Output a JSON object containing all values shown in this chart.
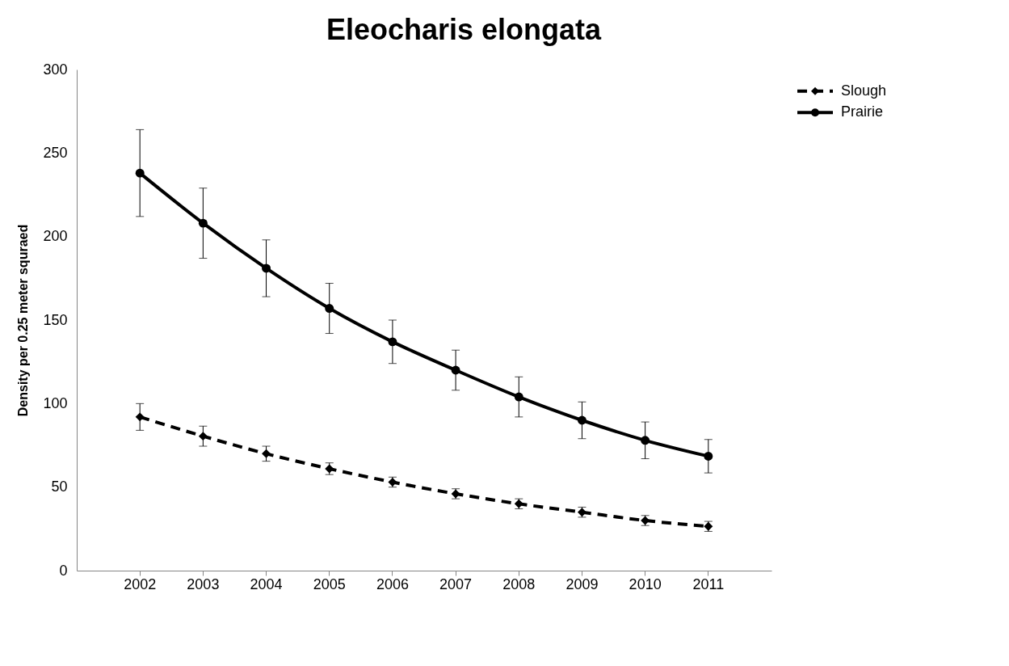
{
  "chart_data": {
    "type": "line",
    "title": "Eleocharis elongata",
    "ylabel": "Density per 0.25 meter squraed",
    "categories": [
      "2002",
      "2003",
      "2004",
      "2005",
      "2006",
      "2007",
      "2008",
      "2009",
      "2010",
      "2011"
    ],
    "series": [
      {
        "name": "Slough",
        "color": "#000000",
        "marker": "diamond",
        "line_style": "dashed",
        "values": [
          92,
          80.5,
          70,
          61,
          53,
          46,
          40,
          35,
          30,
          26.5
        ],
        "errors": [
          8,
          6,
          4.5,
          3.5,
          3,
          3,
          3,
          3,
          3,
          3
        ]
      },
      {
        "name": "Prairie",
        "color": "#000000",
        "marker": "circle",
        "line_style": "solid",
        "values": [
          238,
          208,
          181,
          157,
          137,
          120,
          104,
          90,
          78,
          68.5
        ],
        "errors": [
          26,
          21,
          17,
          15,
          13,
          12,
          12,
          11,
          11,
          10
        ]
      }
    ],
    "ylim": [
      0,
      300
    ],
    "yticks": [
      0,
      50,
      100,
      150,
      200,
      250,
      300
    ],
    "grid": false,
    "legend": "right"
  }
}
